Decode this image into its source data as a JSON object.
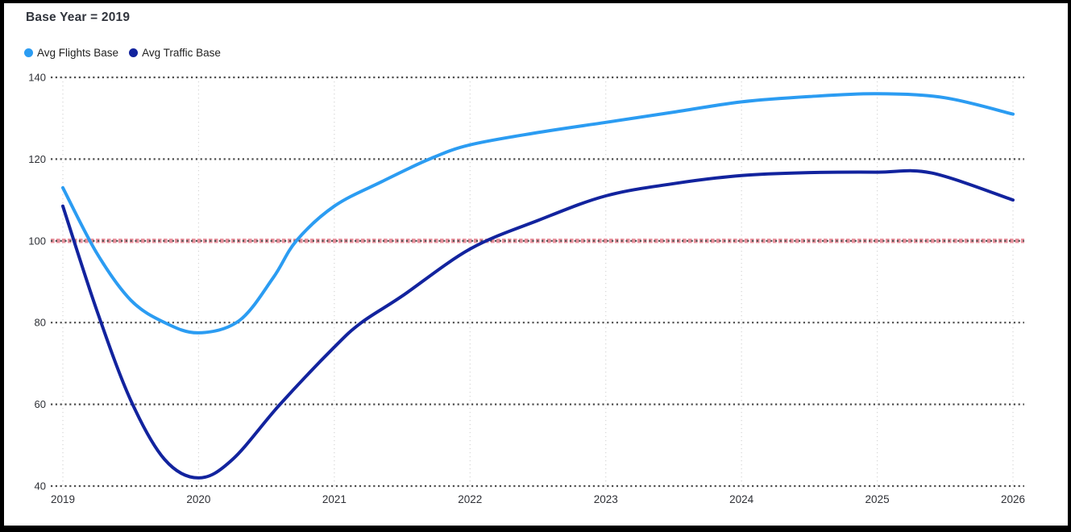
{
  "title": "Base Year = 2019",
  "legend": [
    {
      "label": "Avg Flights Base",
      "color": "#2B9CF2"
    },
    {
      "label": "Avg Traffic Base",
      "color": "#12239E"
    }
  ],
  "axes": {
    "y_tick_labels": [
      "140",
      "120",
      "100",
      "80",
      "60",
      "40"
    ],
    "x_tick_labels": [
      "2019",
      "2020",
      "2021",
      "2022",
      "2023",
      "2024",
      "2025",
      "2026"
    ]
  },
  "colors": {
    "background": "#FFFFFF",
    "frame": "#000000",
    "h_gridline": "#4D4D4D",
    "v_gridline": "#D6D6D6",
    "reference_line": "#E8919D",
    "axis_text": "#2E3036",
    "title_text": "#31353D",
    "legend_text": "#1F1F1F"
  },
  "chart_data": {
    "type": "line",
    "title": "Base Year = 2019",
    "xlabel": "",
    "ylabel": "",
    "x_range": [
      2019,
      2026
    ],
    "ylim": [
      40,
      140
    ],
    "yticks": [
      140,
      120,
      100,
      80,
      60,
      40
    ],
    "xticks": [
      2019,
      2020,
      2021,
      2022,
      2023,
      2024,
      2025,
      2026
    ],
    "grid": "horizontal dark dotted; vertical faint dotted per year",
    "legend_position": "top-left",
    "reference_line": {
      "value": 100,
      "style": "dashed",
      "color": "#E8919D"
    },
    "series": [
      {
        "name": "Avg Flights Base",
        "color": "#2B9CF2",
        "annual_values": {
          "2019": 113,
          "2020": 77.5,
          "2021": 108.5,
          "2022": 123.5,
          "2023": 129,
          "2024": 134,
          "2025": 136,
          "2026": 131
        },
        "points": [
          [
            2019,
            113
          ],
          [
            2019.25,
            97
          ],
          [
            2019.5,
            85.5
          ],
          [
            2019.75,
            80
          ],
          [
            2020,
            77.5
          ],
          [
            2020.3,
            80.5
          ],
          [
            2020.55,
            91
          ],
          [
            2020.72,
            100
          ],
          [
            2021,
            108.5
          ],
          [
            2021.35,
            114.5
          ],
          [
            2021.7,
            120
          ],
          [
            2022,
            123.5
          ],
          [
            2022.5,
            126.5
          ],
          [
            2023,
            129
          ],
          [
            2023.5,
            131.5
          ],
          [
            2024,
            134
          ],
          [
            2024.5,
            135.3
          ],
          [
            2025,
            136
          ],
          [
            2025.5,
            135
          ],
          [
            2026,
            131
          ]
        ]
      },
      {
        "name": "Avg Traffic Base",
        "color": "#12239E",
        "annual_values": {
          "2019": 108.5,
          "2020": 42,
          "2021": 74,
          "2022": 98,
          "2023": 111,
          "2024": 116,
          "2025": 116.8,
          "2026": 110
        },
        "points": [
          [
            2019,
            108.5
          ],
          [
            2019.25,
            83
          ],
          [
            2019.5,
            61
          ],
          [
            2019.75,
            46.5
          ],
          [
            2020,
            42
          ],
          [
            2020.25,
            46.5
          ],
          [
            2020.6,
            60
          ],
          [
            2021,
            74
          ],
          [
            2021.2,
            80
          ],
          [
            2021.5,
            86.5
          ],
          [
            2022,
            98
          ],
          [
            2022.5,
            105
          ],
          [
            2023,
            111
          ],
          [
            2023.5,
            114
          ],
          [
            2024,
            116
          ],
          [
            2024.5,
            116.7
          ],
          [
            2025,
            116.8
          ],
          [
            2025.4,
            116.6
          ],
          [
            2026,
            110
          ]
        ]
      }
    ]
  }
}
